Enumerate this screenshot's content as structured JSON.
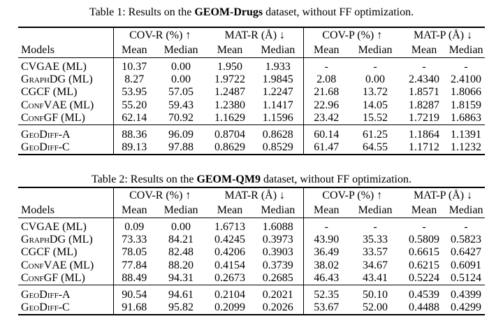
{
  "table1": {
    "caption_prefix": "Table 1: Results on the ",
    "caption_bold": "GEOM-Drugs",
    "caption_suffix": " dataset, without FF optimization.",
    "groups": [
      "COV-R (%) ↑",
      "MAT-R (Å) ↓",
      "COV-P (%) ↑",
      "MAT-P (Å) ↓"
    ],
    "models_header": "Models",
    "sub_headers": [
      "Mean",
      "Median",
      "Mean",
      "Median",
      "Mean",
      "Median",
      "Mean",
      "Median"
    ],
    "baselines": [
      {
        "model": "CVGAE (ML)",
        "values": [
          "10.37",
          "0.00",
          "1.950",
          "1.933",
          "-",
          "-",
          "-",
          "-"
        ]
      },
      {
        "model": "GraphDG (ML)",
        "values": [
          "8.27",
          "0.00",
          "1.9722",
          "1.9845",
          "2.08",
          "0.00",
          "2.4340",
          "2.4100"
        ]
      },
      {
        "model": "CGCF (ML)",
        "values": [
          "53.95",
          "57.05",
          "1.2487",
          "1.2247",
          "21.68",
          "13.72",
          "1.8571",
          "1.8066"
        ]
      },
      {
        "model": "ConfVAE (ML)",
        "values": [
          "55.20",
          "59.43",
          "1.2380",
          "1.1417",
          "22.96",
          "14.05",
          "1.8287",
          "1.8159"
        ]
      },
      {
        "model": "ConfGF (ML)",
        "values": [
          "62.14",
          "70.92",
          "1.1629",
          "1.1596",
          "23.42",
          "15.52",
          "1.7219",
          "1.6863"
        ]
      }
    ],
    "ours": [
      {
        "model": "GeoDiff-A",
        "values": [
          "88.36",
          "96.09",
          "0.8704",
          "0.8628",
          "60.14",
          "61.25",
          "1.1864",
          "1.1391"
        ],
        "bold": [
          false,
          false,
          false,
          false,
          false,
          false,
          false,
          false
        ]
      },
      {
        "model": "GeoDiff-C",
        "values": [
          "89.13",
          "97.88",
          "0.8629",
          "0.8529",
          "61.47",
          "64.55",
          "1.1712",
          "1.1232"
        ],
        "bold": [
          true,
          true,
          true,
          true,
          true,
          true,
          true,
          true
        ]
      }
    ]
  },
  "table2": {
    "caption_prefix": "Table 2: Results on the ",
    "caption_bold": "GEOM-QM9",
    "caption_suffix": " dataset, without FF optimization.",
    "groups": [
      "COV-R (%) ↑",
      "MAT-R (Å) ↓",
      "COV-P (%) ↑",
      "MAT-P (Å) ↓"
    ],
    "models_header": "Models",
    "sub_headers": [
      "Mean",
      "Median",
      "Mean",
      "Median",
      "Mean",
      "Median",
      "Mean",
      "Median"
    ],
    "baselines": [
      {
        "model": "CVGAE (ML)",
        "values": [
          "0.09",
          "0.00",
          "1.6713",
          "1.6088",
          "-",
          "-",
          "-",
          "-"
        ]
      },
      {
        "model": "GraphDG (ML)",
        "values": [
          "73.33",
          "84.21",
          "0.4245",
          "0.3973",
          "43.90",
          "35.33",
          "0.5809",
          "0.5823"
        ]
      },
      {
        "model": "CGCF (ML)",
        "values": [
          "78.05",
          "82.48",
          "0.4206",
          "0.3903",
          "36.49",
          "33.57",
          "0.6615",
          "0.6427"
        ]
      },
      {
        "model": "ConfVAE (ML)",
        "values": [
          "77.84",
          "88.20",
          "0.4154",
          "0.3739",
          "38.02",
          "34.67",
          "0.6215",
          "0.6091"
        ]
      },
      {
        "model": "ConfGF (ML)",
        "values": [
          "88.49",
          "94.31",
          "0.2673",
          "0.2685",
          "46.43",
          "43.41",
          "0.5224",
          "0.5124"
        ]
      }
    ],
    "ours": [
      {
        "model": "GeoDiff-A",
        "values": [
          "90.54",
          "94.61",
          "0.2104",
          "0.2021",
          "52.35",
          "50.10",
          "0.4539",
          "0.4399"
        ],
        "bold": [
          false,
          false,
          false,
          true,
          false,
          false,
          false,
          false
        ]
      },
      {
        "model": "GeoDiff-C",
        "values": [
          "91.68",
          "95.82",
          "0.2099",
          "0.2026",
          "53.67",
          "52.00",
          "0.4488",
          "0.4299"
        ],
        "bold": [
          true,
          true,
          true,
          false,
          true,
          true,
          true,
          true
        ]
      }
    ]
  }
}
